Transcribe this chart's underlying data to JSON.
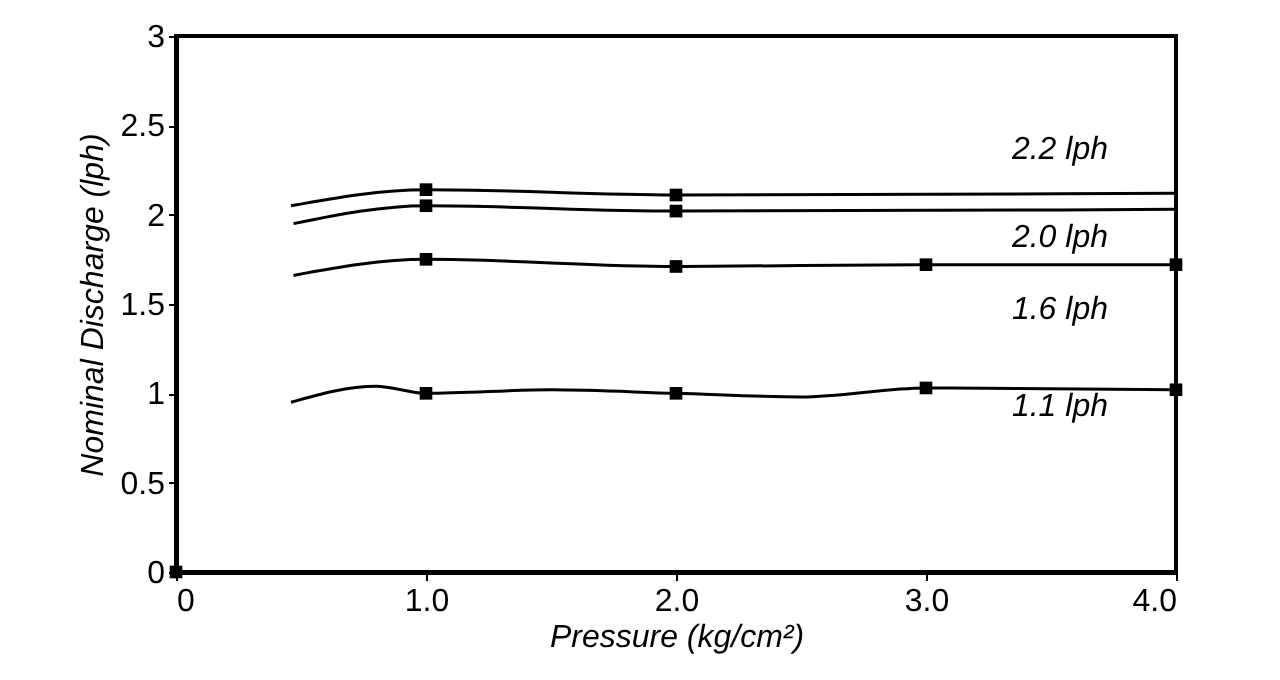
{
  "chart_data": {
    "type": "line",
    "xlabel": "Pressure (kg/cm²)",
    "ylabel": "Nominal Discharge (lph)",
    "xlim": [
      0,
      4
    ],
    "ylim": [
      0,
      3
    ],
    "xticks": [
      0,
      {
        "value": 1,
        "label": "1.0"
      },
      {
        "value": 2,
        "label": "2.0"
      },
      {
        "value": 3,
        "label": "3.0"
      },
      {
        "value": 4,
        "label": "4.0"
      }
    ],
    "yticks": [
      0,
      0.5,
      1,
      1.5,
      2,
      2.5,
      3
    ],
    "grid": false,
    "line_style": "solid",
    "series": [
      {
        "name": "2.2 lph",
        "color": "#000000",
        "marker": "none",
        "x": [
          0.46,
          1.0,
          2.0,
          4.0
        ],
        "values": [
          2.05,
          2.14,
          2.11,
          2.12
        ]
      },
      {
        "name": "2.0 lph",
        "color": "#000000",
        "marker": "none",
        "x": [
          0.47,
          1.0,
          2.0,
          4.0
        ],
        "values": [
          1.95,
          2.05,
          2.02,
          2.03
        ]
      },
      {
        "name": "1.6 lph",
        "color": "#000000",
        "marker": "none",
        "x": [
          0.47,
          1.0,
          2.0,
          3.0,
          4.0
        ],
        "values": [
          1.66,
          1.75,
          1.71,
          1.72,
          1.72
        ]
      },
      {
        "name": "1.1 lph",
        "color": "#000000",
        "marker": "none",
        "x": [
          0.46,
          0.8,
          1.0,
          1.5,
          2.0,
          2.5,
          3.0,
          4.0
        ],
        "values": [
          0.95,
          1.04,
          1.0,
          1.02,
          1.0,
          0.98,
          1.03,
          1.02
        ]
      },
      {
        "type": "scatter",
        "color": "#000000",
        "marker": "square",
        "x": [
          0,
          1.0,
          2.0,
          1.0,
          2.0,
          1.0,
          2.0,
          3.0,
          4.0,
          1.0,
          2.0,
          3.0,
          4.0
        ],
        "values": [
          0,
          2.14,
          2.11,
          2.05,
          2.02,
          1.75,
          1.71,
          1.72,
          1.72,
          1.0,
          1.0,
          1.03,
          1.02
        ]
      }
    ]
  }
}
